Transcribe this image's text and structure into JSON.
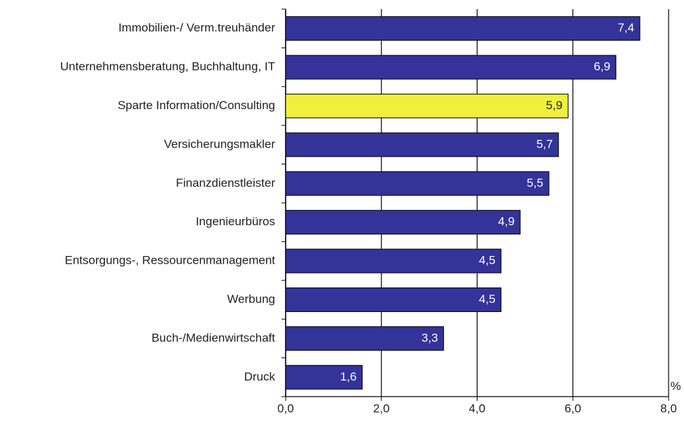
{
  "chart_data": {
    "type": "bar",
    "orientation": "horizontal",
    "categories": [
      "Immobilien-/ Verm.treuhänder",
      "Unternehmensberatung, Buchhaltung, IT",
      "Sparte Information/Consulting",
      "Versicherungsmakler",
      "Finanzdienstleister",
      "Ingenieurbüros",
      "Entsorgungs-, Ressourcenmanagement",
      "Werbung",
      "Buch-/Medienwirtschaft",
      "Druck"
    ],
    "values": [
      7.4,
      6.9,
      5.9,
      5.7,
      5.5,
      4.9,
      4.5,
      4.5,
      3.3,
      1.6
    ],
    "value_labels": [
      "7,4",
      "6,9",
      "5,9",
      "5,7",
      "5,5",
      "4,9",
      "4,5",
      "4,5",
      "3,3",
      "1,6"
    ],
    "colors": [
      "#333399",
      "#333399",
      "#f0f03c",
      "#333399",
      "#333399",
      "#333399",
      "#333399",
      "#333399",
      "#333399",
      "#333399"
    ],
    "xlim": [
      0,
      8
    ],
    "xticks": [
      {
        "value": 0,
        "label": "0,0"
      },
      {
        "value": 2,
        "label": "2,0"
      },
      {
        "value": 4,
        "label": "4,0"
      },
      {
        "value": 6,
        "label": "6,0"
      },
      {
        "value": 8,
        "label": "8,0"
      }
    ],
    "xlabel": "%",
    "grid": true
  }
}
